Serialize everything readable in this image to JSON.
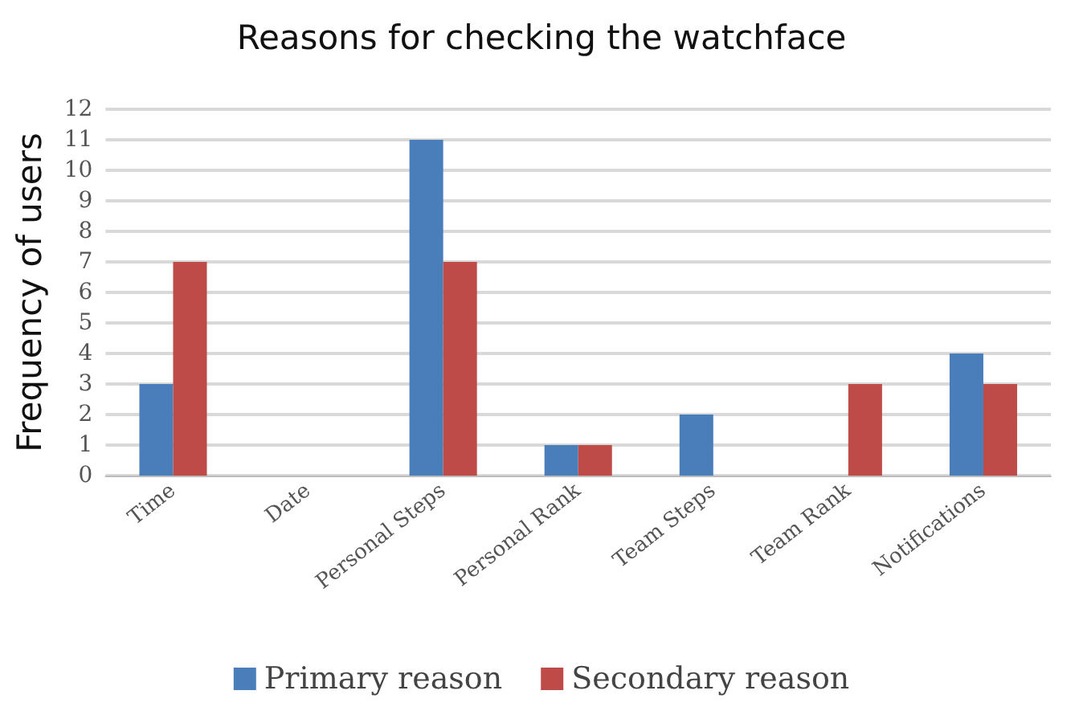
{
  "chart_data": {
    "type": "bar",
    "title": "Reasons for checking the watchface",
    "ylabel": "Frequency of users",
    "categories": [
      "Time",
      "Date",
      "Personal Steps",
      "Personal Rank",
      "Team Steps",
      "Team Rank",
      "Notifications"
    ],
    "series": [
      {
        "name": "Primary reason",
        "color": "#4a7ebb",
        "values": [
          3,
          0,
          11,
          1,
          2,
          0,
          4
        ]
      },
      {
        "name": "Secondary reason",
        "color": "#be4b48",
        "values": [
          7,
          0,
          7,
          1,
          0,
          3,
          3
        ]
      }
    ],
    "ylim": [
      0,
      12
    ],
    "yticks": [
      0,
      1,
      2,
      3,
      4,
      5,
      6,
      7,
      8,
      9,
      10,
      11,
      12
    ],
    "grid": "y",
    "legend": "bottom"
  }
}
